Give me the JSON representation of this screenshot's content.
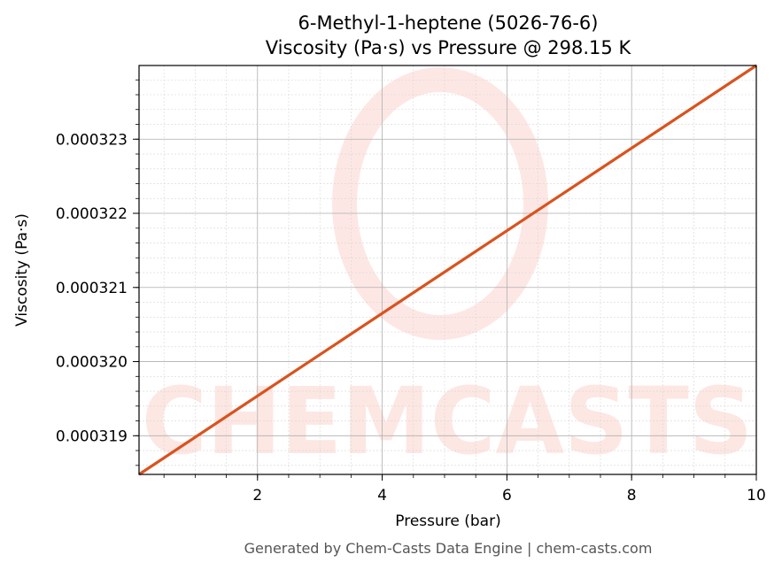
{
  "chart_data": {
    "type": "line",
    "title_line1": "6-Methyl-1-heptene (5026-76-6)",
    "title_line2": "Viscosity (Pa·s) vs Pressure @ 298.15 K",
    "xlabel": "Pressure (bar)",
    "ylabel": "Viscosity (Pa·s)",
    "xlim": [
      0.1,
      10
    ],
    "ylim": [
      0.0003184783,
      0.0003239941
    ],
    "x_ticks": [
      2,
      4,
      6,
      8,
      10
    ],
    "x_tick_labels": [
      "2",
      "4",
      "6",
      "8",
      "10"
    ],
    "y_ticks": [
      0.000319,
      0.00032,
      0.000321,
      0.000322,
      0.000323
    ],
    "y_tick_labels": [
      "0.000319",
      "0.000320",
      "0.000321",
      "0.000322",
      "0.000323"
    ],
    "grid": true,
    "series": [
      {
        "color": "#d9531e",
        "x": [
          0.1,
          10
        ],
        "y": [
          0.0003184783,
          0.0003239941
        ]
      }
    ]
  },
  "watermark": {
    "text": "CHEMCASTS",
    "color": "#fde3df"
  },
  "footer": "Generated by Chem-Casts Data Engine | chem-casts.com"
}
